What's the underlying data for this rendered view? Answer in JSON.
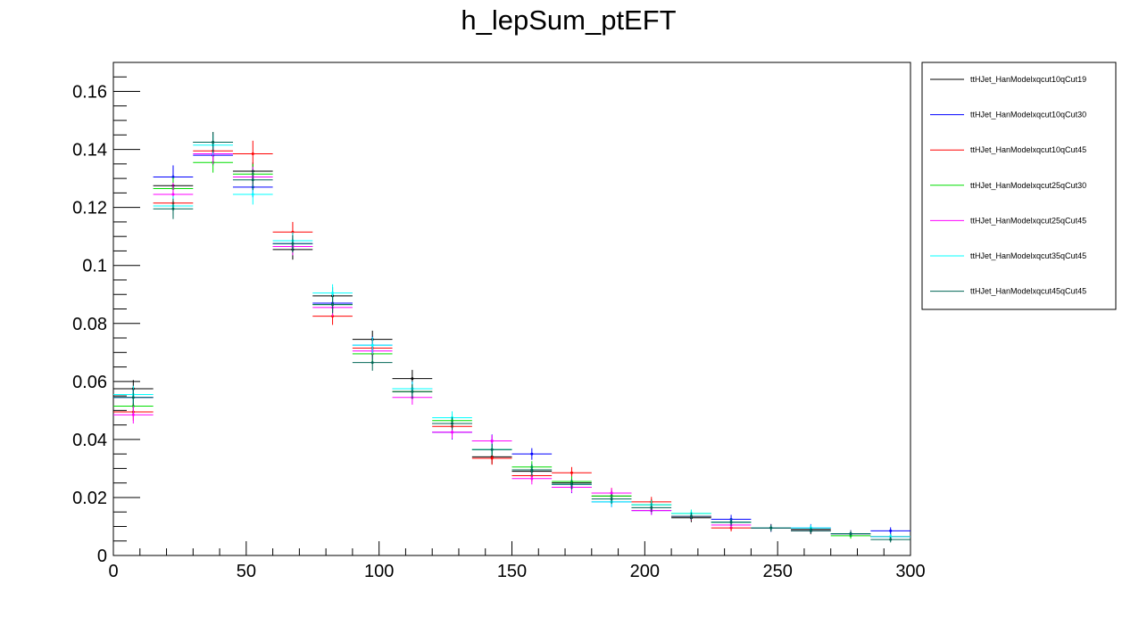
{
  "chart_data": {
    "type": "scatter",
    "title": "h_lepSum_ptEFT",
    "xlabel": "",
    "ylabel": "",
    "xlim": [
      0,
      300
    ],
    "ylim": [
      0,
      0.17
    ],
    "x_ticks": [
      0,
      50,
      100,
      150,
      200,
      250,
      300
    ],
    "x_tick_labels": [
      "0",
      "50",
      "100",
      "150",
      "200",
      "250",
      "300"
    ],
    "y_ticks": [
      0,
      0.02,
      0.04,
      0.06,
      0.08,
      0.1,
      0.12,
      0.14,
      0.16
    ],
    "y_tick_labels": [
      "0",
      "0.02",
      "0.04",
      "0.06",
      "0.08",
      "0.1",
      "0.12",
      "0.14",
      "0.16"
    ],
    "grid": false,
    "legend_position": "right",
    "bin_width": 15,
    "x": [
      7.5,
      22.5,
      37.5,
      52.5,
      67.5,
      82.5,
      97.5,
      112.5,
      127.5,
      142.5,
      157.5,
      172.5,
      187.5,
      202.5,
      217.5,
      232.5,
      247.5,
      262.5,
      277.5,
      292.5
    ],
    "series": [
      {
        "name": "ttHJet_HanModelxqcut10qCut19",
        "color": "#000000",
        "values": [
          0.0575,
          0.1275,
          0.1425,
          0.1325,
          0.1055,
          0.0895,
          0.0745,
          0.061,
          0.0455,
          0.034,
          0.029,
          0.025,
          0.0205,
          0.0175,
          0.013,
          0.0115,
          0.0095,
          0.009,
          0.0075,
          0.0065
        ],
        "errors": [
          0.003,
          0.004,
          0.0035,
          0.003,
          0.0035,
          0.003,
          0.003,
          0.003,
          0.0025,
          0.0025,
          0.002,
          0.002,
          0.002,
          0.0018,
          0.0015,
          0.0015,
          0.0013,
          0.0013,
          0.0012,
          0.0012
        ]
      },
      {
        "name": "ttHJet_HanModelxqcut10qCut30",
        "color": "#0000ff",
        "values": [
          0.0545,
          0.1305,
          0.138,
          0.127,
          0.1075,
          0.087,
          0.0725,
          0.0575,
          0.0425,
          0.0395,
          0.035,
          0.0235,
          0.0185,
          0.0155,
          0.0135,
          0.0125,
          0.0095,
          0.0095,
          0.0075,
          0.0085
        ],
        "errors": [
          0.003,
          0.004,
          0.0035,
          0.0035,
          0.003,
          0.003,
          0.003,
          0.0025,
          0.0025,
          0.0022,
          0.002,
          0.002,
          0.0018,
          0.0015,
          0.0015,
          0.0015,
          0.0013,
          0.0013,
          0.0012,
          0.0012
        ]
      },
      {
        "name": "ttHJet_HanModelxqcut10qCut45",
        "color": "#ff0000",
        "values": [
          0.0495,
          0.1215,
          0.1395,
          0.1385,
          0.1115,
          0.0825,
          0.0715,
          0.0565,
          0.0445,
          0.0335,
          0.0275,
          0.0285,
          0.0215,
          0.0185,
          0.0135,
          0.0095,
          0.0095,
          0.0085,
          0.0075,
          0.0065
        ],
        "errors": [
          0.003,
          0.004,
          0.0035,
          0.0045,
          0.0035,
          0.003,
          0.003,
          0.0025,
          0.0025,
          0.0022,
          0.002,
          0.002,
          0.0018,
          0.0017,
          0.0015,
          0.0012,
          0.0012,
          0.0012,
          0.0011,
          0.001
        ]
      },
      {
        "name": "ttHJet_HanModelxqcut25qCut30",
        "color": "#00dd00",
        "values": [
          0.0515,
          0.1265,
          0.1355,
          0.1315,
          0.1065,
          0.0865,
          0.0695,
          0.0565,
          0.0465,
          0.0365,
          0.0305,
          0.0255,
          0.0205,
          0.0175,
          0.0145,
          0.0115,
          0.0095,
          0.0085,
          0.0068,
          0.0065
        ],
        "errors": [
          0.003,
          0.004,
          0.0035,
          0.0035,
          0.003,
          0.003,
          0.0028,
          0.0025,
          0.0022,
          0.002,
          0.002,
          0.0018,
          0.0017,
          0.0015,
          0.0013,
          0.0012,
          0.0011,
          0.0011,
          0.001,
          0.001
        ]
      },
      {
        "name": "ttHJet_HanModelxqcut25qCut45",
        "color": "#ff00ff",
        "values": [
          0.0485,
          0.1245,
          0.1385,
          0.1305,
          0.1065,
          0.0855,
          0.0705,
          0.0545,
          0.0425,
          0.0395,
          0.0265,
          0.0235,
          0.0215,
          0.0155,
          0.0135,
          0.0105,
          0.0095,
          0.0085,
          0.0075,
          0.0065
        ],
        "errors": [
          0.003,
          0.004,
          0.0035,
          0.0035,
          0.003,
          0.003,
          0.0028,
          0.0025,
          0.0022,
          0.002,
          0.002,
          0.0018,
          0.0017,
          0.0015,
          0.0013,
          0.0012,
          0.0011,
          0.0011,
          0.001,
          0.001
        ]
      },
      {
        "name": "ttHJet_HanModelxqcut35qCut45",
        "color": "#00ffff",
        "values": [
          0.0555,
          0.1205,
          0.1415,
          0.1245,
          0.1085,
          0.0905,
          0.0725,
          0.0575,
          0.0475,
          0.0365,
          0.0295,
          0.0245,
          0.0185,
          0.0175,
          0.0145,
          0.0115,
          0.0095,
          0.0095,
          0.0075,
          0.0065
        ],
        "errors": [
          0.003,
          0.0035,
          0.0035,
          0.0035,
          0.003,
          0.003,
          0.0028,
          0.0025,
          0.0022,
          0.002,
          0.002,
          0.0018,
          0.0017,
          0.0015,
          0.0013,
          0.0012,
          0.0011,
          0.0011,
          0.001,
          0.001
        ]
      },
      {
        "name": "ttHJet_HanModelxqcut45qCut45",
        "color": "#006655",
        "values": [
          0.0545,
          0.1195,
          0.1425,
          0.1295,
          0.1075,
          0.0865,
          0.0665,
          0.0565,
          0.0455,
          0.0365,
          0.0295,
          0.0245,
          0.0195,
          0.0165,
          0.0135,
          0.0115,
          0.0095,
          0.0085,
          0.0075,
          0.0055
        ],
        "errors": [
          0.003,
          0.0035,
          0.0035,
          0.0035,
          0.003,
          0.003,
          0.0028,
          0.0025,
          0.0022,
          0.002,
          0.002,
          0.0018,
          0.0017,
          0.0015,
          0.0013,
          0.0012,
          0.0011,
          0.0011,
          0.001,
          0.001
        ]
      }
    ]
  }
}
